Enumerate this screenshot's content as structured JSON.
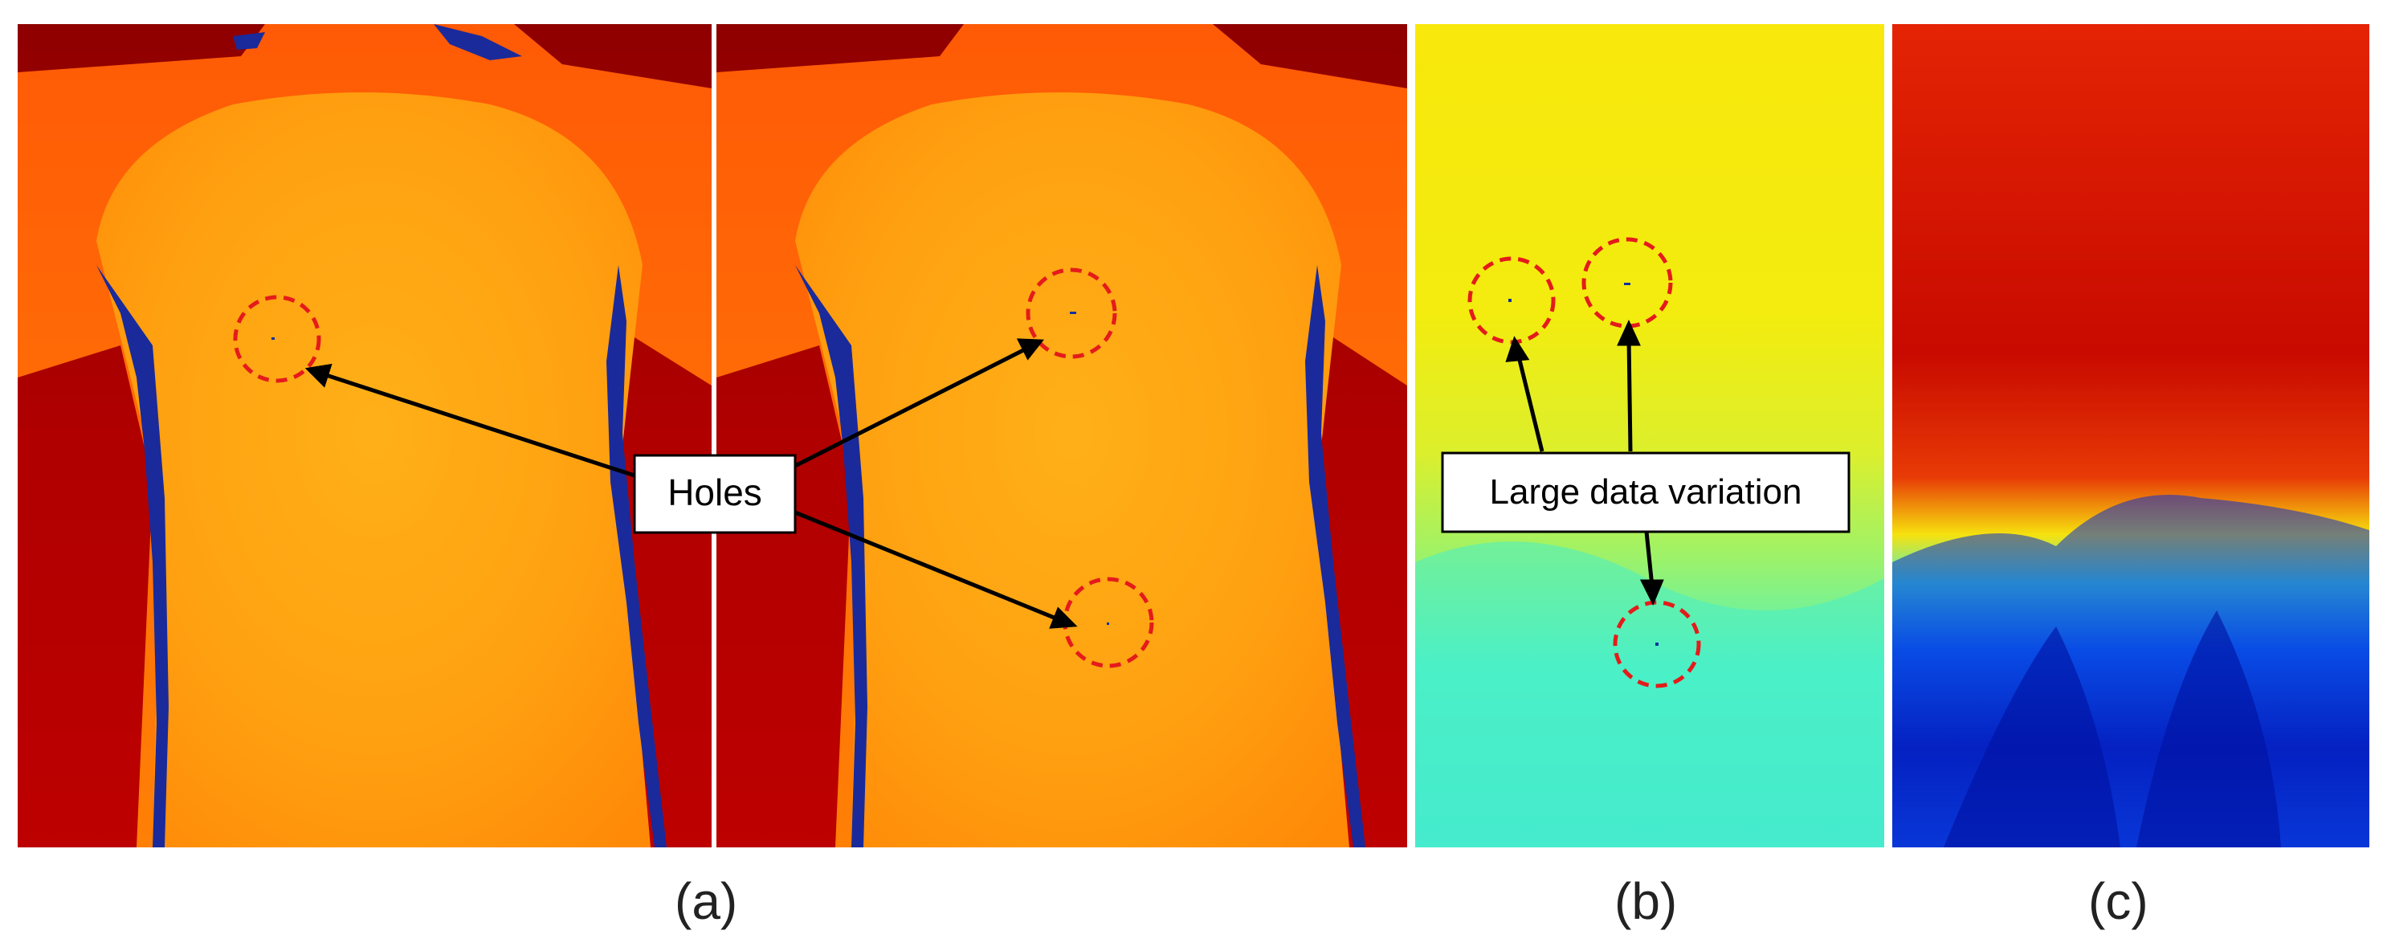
{
  "figure": {
    "callouts": {
      "holes": "Holes",
      "variation": "Large data variation"
    },
    "panel_labels": {
      "a": "(a)",
      "b": "(b)",
      "c": "(c)"
    }
  },
  "colors": {
    "background_red": "#b30000",
    "body_orange": "#ffa310",
    "hole_blue": "#1030a0",
    "circle": "#e41b1b",
    "arrow": "#000000",
    "jet_yellow": "#f6e60e",
    "jet_cyan": "#36f0d8",
    "jet_blue": "#0020c0"
  }
}
